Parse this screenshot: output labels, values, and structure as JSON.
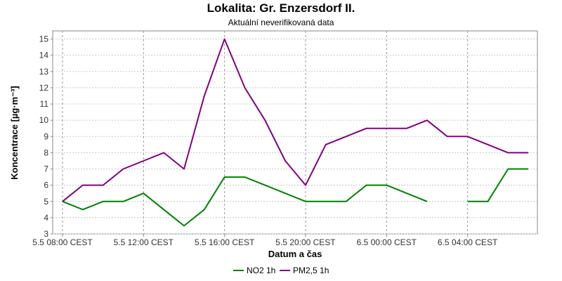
{
  "chart_data": {
    "type": "line",
    "title": "Lokalita: Gr. Enzersdorf II.",
    "subtitle": "Aktuální neverifikovaná data",
    "xlabel": "Datum a čas",
    "ylabel": "Koncentrace [µg·m⁻³]",
    "ylim": [
      3,
      15.5
    ],
    "yticks": [
      3,
      4,
      5,
      6,
      7,
      8,
      9,
      10,
      11,
      12,
      13,
      14,
      15
    ],
    "x": [
      "5.5 08:00",
      "5.5 09:00",
      "5.5 10:00",
      "5.5 11:00",
      "5.5 12:00",
      "5.5 13:00",
      "5.5 14:00",
      "5.5 15:00",
      "5.5 16:00",
      "5.5 17:00",
      "5.5 18:00",
      "5.5 19:00",
      "5.5 20:00",
      "5.5 21:00",
      "5.5 22:00",
      "5.5 23:00",
      "6.5 00:00",
      "6.5 01:00",
      "6.5 02:00",
      "6.5 03:00",
      "6.5 04:00",
      "6.5 05:00",
      "6.5 06:00",
      "6.5 07:00"
    ],
    "xticks": [
      {
        "index": 0,
        "label": "5.5 08:00 CEST"
      },
      {
        "index": 4,
        "label": "5.5 12:00 CEST"
      },
      {
        "index": 8,
        "label": "5.5 16:00 CEST"
      },
      {
        "index": 12,
        "label": "5.5 20:00 CEST"
      },
      {
        "index": 16,
        "label": "6.5 00:00 CEST"
      },
      {
        "index": 20,
        "label": "6.5 04:00 CEST"
      }
    ],
    "grid": true,
    "legend_position": "bottom",
    "series": [
      {
        "name": "NO2 1h",
        "color": "#008000",
        "values": [
          5,
          4.5,
          5,
          5,
          5.5,
          4.5,
          3.5,
          4.5,
          6.5,
          6.5,
          6,
          5.5,
          5,
          5,
          5,
          6,
          6,
          5.5,
          5,
          null,
          5,
          5,
          7,
          7
        ]
      },
      {
        "name": "PM2,5 1h",
        "color": "#800080",
        "values": [
          5,
          6,
          6,
          7,
          7.5,
          8,
          7,
          11.5,
          15,
          12,
          10,
          7.5,
          6,
          8.5,
          9,
          9.5,
          9.5,
          9.5,
          10,
          9,
          9,
          8.5,
          8,
          8
        ]
      }
    ]
  }
}
